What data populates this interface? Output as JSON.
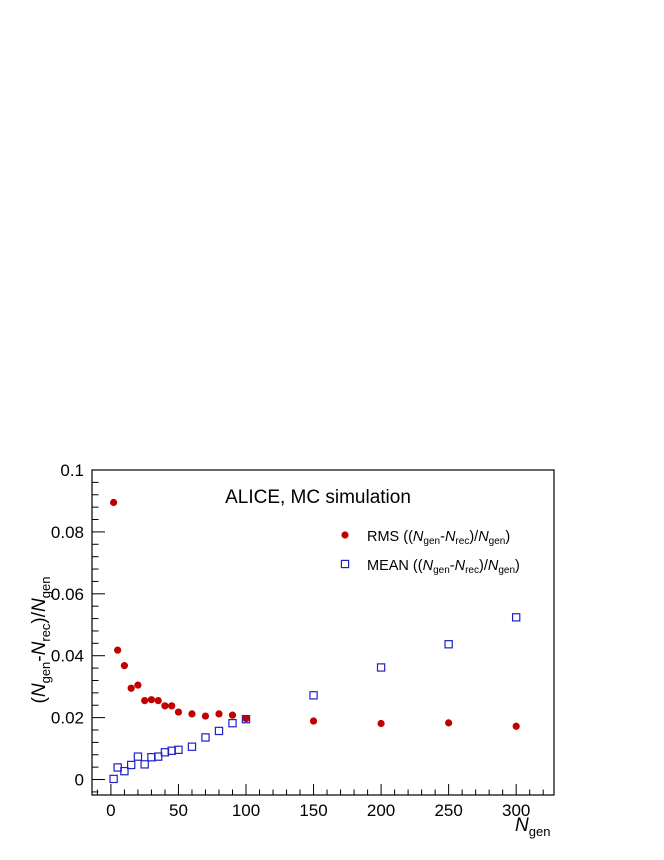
{
  "chart_data": {
    "type": "scatter",
    "title": "ALICE, MC simulation",
    "xlabel": {
      "main": "N",
      "sub": "gen"
    },
    "ylabel": {
      "open": "(",
      "n1": "N",
      "s1": "gen",
      "dash": "-",
      "n2": "N",
      "s2": "rec",
      "close": ")/",
      "n3": "N",
      "s3": "gen"
    },
    "xlim": [
      -14,
      328
    ],
    "ylim": [
      -0.005,
      0.1
    ],
    "x_ticks": [
      0,
      50,
      100,
      150,
      200,
      250,
      300
    ],
    "x_tick_labels": [
      "0",
      "50",
      "100",
      "150",
      "200",
      "250",
      "300"
    ],
    "y_ticks": [
      0,
      0.02,
      0.04,
      0.06,
      0.08,
      0.1
    ],
    "y_tick_labels": [
      "0",
      "0.02",
      "0.04",
      "0.06",
      "0.08",
      "0.1"
    ],
    "legend_position": "top-right",
    "series": [
      {
        "name": "RMS ((Ngen-Nrec)/Ngen)",
        "legend": {
          "pre": "RMS ((",
          "n1": "N",
          "s1": "gen",
          "dash": "-",
          "n2": "N",
          "s2": "rec",
          "mid": ")/",
          "n3": "N",
          "s3": "gen",
          "post": ")"
        },
        "marker": "filled-circle",
        "color": "#c00000",
        "x": [
          2,
          5,
          10,
          15,
          20,
          25,
          30,
          35,
          40,
          45,
          50,
          60,
          70,
          80,
          90,
          100,
          150,
          200,
          250,
          300
        ],
        "y": [
          0.0895,
          0.0418,
          0.0368,
          0.0295,
          0.0305,
          0.0255,
          0.0258,
          0.0255,
          0.0238,
          0.0238,
          0.0218,
          0.0212,
          0.0205,
          0.0212,
          0.0208,
          0.0197,
          0.0189,
          0.0181,
          0.0183,
          0.0172
        ]
      },
      {
        "name": "MEAN ((Ngen-Nrec)/Ngen)",
        "legend": {
          "pre": "MEAN ((",
          "n1": "N",
          "s1": "gen",
          "dash": "-",
          "n2": "N",
          "s2": "rec",
          "mid": ")/",
          "n3": "N",
          "s3": "gen",
          "post": ")"
        },
        "marker": "open-square",
        "color": "#1f1fc8",
        "x": [
          2,
          5,
          10,
          15,
          20,
          25,
          30,
          35,
          40,
          45,
          50,
          60,
          70,
          80,
          90,
          100,
          150,
          200,
          250,
          300
        ],
        "y": [
          0.0002,
          0.0039,
          0.0027,
          0.0047,
          0.0074,
          0.0049,
          0.0072,
          0.0074,
          0.0088,
          0.0093,
          0.0096,
          0.0106,
          0.0136,
          0.0157,
          0.0182,
          0.0195,
          0.0272,
          0.0362,
          0.0437,
          0.0524
        ]
      }
    ]
  }
}
